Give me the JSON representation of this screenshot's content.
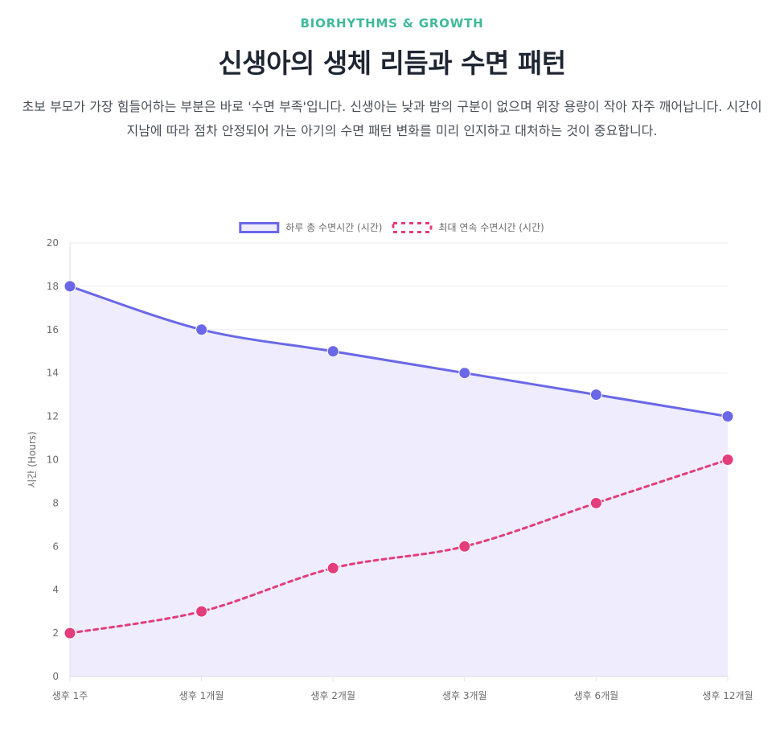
{
  "header": {
    "eyebrow": "BIORHYTHMS & GROWTH",
    "title": "신생아의 생체 리듬과 수면 패턴",
    "description": "초보 부모가 가장 힘들어하는 부분은 바로 '수면 부족'입니다. 신생아는 낮과 밤의 구분이 없으며 위장 용량이 작아 자주 깨어납니다. 시간이 지남에 따라 점차 안정되어 가는 아기의 수면 패턴 변화를 미리 인지하고 대처하는 것이 중요합니다."
  },
  "chart_data": {
    "type": "line",
    "categories": [
      "생후 1주",
      "생후 1개월",
      "생후 2개월",
      "생후 3개월",
      "생후 6개월",
      "생후 12개월"
    ],
    "series": [
      {
        "name": "하루 총 수면시간 (시간)",
        "values": [
          18,
          16,
          15,
          14,
          13,
          12
        ],
        "color": "#6a67e8",
        "fill": "#eeecfd",
        "dashed": false,
        "filled": true
      },
      {
        "name": "최대 연속 수면시간 (시간)",
        "values": [
          2,
          3,
          5,
          6,
          8,
          10
        ],
        "color": "#e33d7b",
        "fill": "",
        "dashed": true,
        "filled": false
      }
    ],
    "ylabel": "시간 (Hours)",
    "xlabel": "",
    "ylim": [
      0,
      20
    ],
    "yticks": [
      0,
      2,
      4,
      6,
      8,
      10,
      12,
      14,
      16,
      18,
      20
    ],
    "grid": true,
    "legend_position": "top-center"
  }
}
